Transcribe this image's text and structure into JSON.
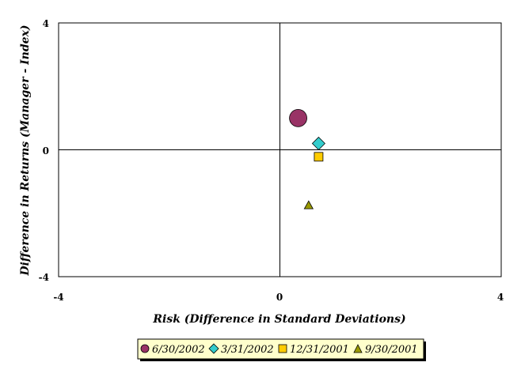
{
  "chart_data": {
    "type": "scatter",
    "title": "",
    "xlabel": "Risk (Difference in Standard Deviations)",
    "ylabel": "Difference in Returns (Manager - Index)",
    "xlim": [
      -4,
      4
    ],
    "ylim": [
      -4,
      4
    ],
    "x_ticks": [
      "-4",
      "0",
      "4"
    ],
    "y_ticks": [
      "4",
      "0",
      "-4"
    ],
    "grid": false,
    "legend_position": "bottom-center",
    "series": [
      {
        "name": "6/30/2002",
        "marker": "circle",
        "color": "#993366",
        "x": 0.33,
        "y": 1.0,
        "size": "large"
      },
      {
        "name": "3/31/2002",
        "marker": "diamond",
        "color": "#33CCCC",
        "x": 0.7,
        "y": 0.2,
        "size": "medium"
      },
      {
        "name": "12/31/2001",
        "marker": "square",
        "color": "#FFCC00",
        "x": 0.7,
        "y": -0.22,
        "size": "small"
      },
      {
        "name": "9/30/2001",
        "marker": "triangle",
        "color": "#999900",
        "x": 0.52,
        "y": -1.75,
        "size": "small"
      }
    ]
  }
}
